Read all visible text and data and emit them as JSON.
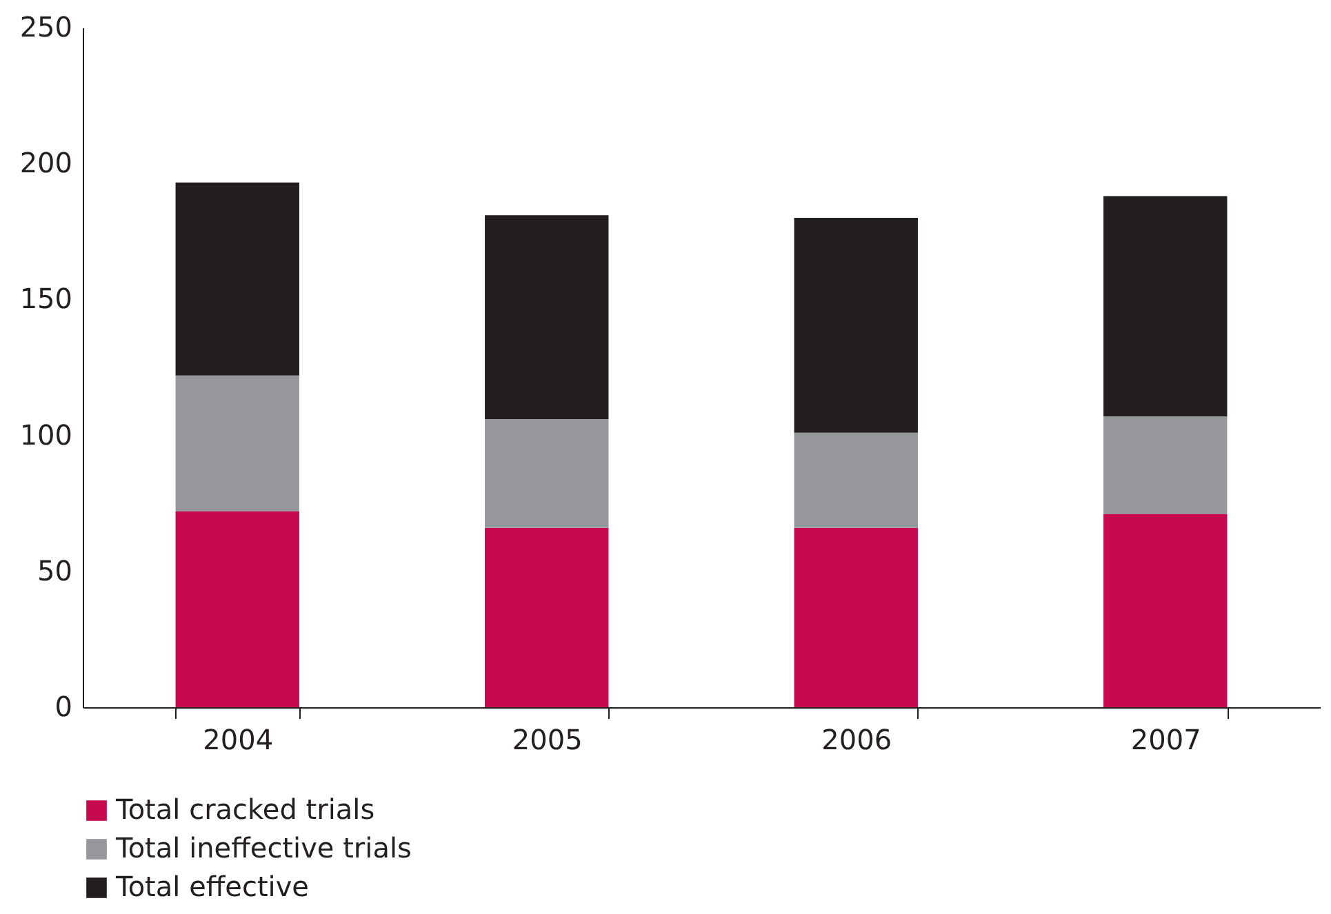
{
  "chart_data": {
    "type": "bar",
    "stacked": true,
    "categories": [
      "2004",
      "2005",
      "2006",
      "2007"
    ],
    "series": [
      {
        "name": "Total cracked trials",
        "color": "#c8084f",
        "values": [
          72,
          66,
          66,
          71
        ]
      },
      {
        "name": "Total ineffective trials",
        "color": "#96979b",
        "values": [
          50,
          40,
          35,
          36
        ]
      },
      {
        "name": "Total effective",
        "color": "#231f20",
        "values": [
          71,
          75,
          79,
          81
        ]
      }
    ],
    "ylim": [
      0,
      250
    ],
    "yticks": [
      0,
      50,
      100,
      150,
      200,
      250
    ],
    "grid": false,
    "legend": "bottom left"
  }
}
